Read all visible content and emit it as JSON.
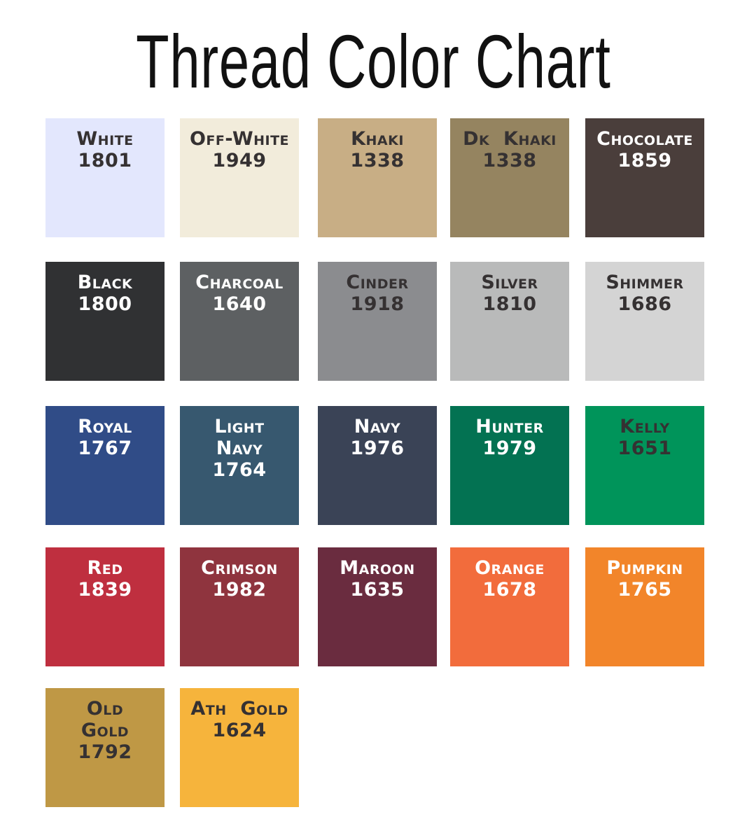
{
  "title": "Thread Color Chart",
  "swatches": [
    {
      "name": "White",
      "code": "1801",
      "color": "#e3e7fd",
      "text": "dark"
    },
    {
      "name": "Off-White",
      "code": "1949",
      "color": "#f2ecdb",
      "text": "dark"
    },
    {
      "name": "Khaki",
      "code": "1338",
      "color": "#c8ae85",
      "text": "dark"
    },
    {
      "name": "Dk  Khaki",
      "code": "1338",
      "color": "#958460",
      "text": "dark"
    },
    {
      "name": "Chocolate",
      "code": "1859",
      "color": "#4a3e3b",
      "text": "light"
    },
    {
      "name": "Black",
      "code": "1800",
      "color": "#303133",
      "text": "light"
    },
    {
      "name": "Charcoal",
      "code": "1640",
      "color": "#5d6062",
      "text": "light"
    },
    {
      "name": "Cinder",
      "code": "1918",
      "color": "#8b8c8f",
      "text": "dark"
    },
    {
      "name": "Silver",
      "code": "1810",
      "color": "#b9baba",
      "text": "dark"
    },
    {
      "name": "Shimmer",
      "code": "1686",
      "color": "#d4d4d4",
      "text": "dark"
    },
    {
      "name": "Royal",
      "code": "1767",
      "color": "#304c87",
      "text": "light"
    },
    {
      "name": "Light Navy",
      "code": "1764",
      "color": "#37586f",
      "text": "light"
    },
    {
      "name": "Navy",
      "code": "1976",
      "color": "#3a4356",
      "text": "light"
    },
    {
      "name": "Hunter",
      "code": "1979",
      "color": "#037252",
      "text": "light"
    },
    {
      "name": "Kelly",
      "code": "1651",
      "color": "#00945a",
      "text": "dark"
    },
    {
      "name": "Red",
      "code": "1839",
      "color": "#bf2f3f",
      "text": "light"
    },
    {
      "name": "Crimson",
      "code": "1982",
      "color": "#8f343e",
      "text": "light"
    },
    {
      "name": "Maroon",
      "code": "1635",
      "color": "#6a2c3f",
      "text": "light"
    },
    {
      "name": "Orange",
      "code": "1678",
      "color": "#f26c3c",
      "text": "light"
    },
    {
      "name": "Pumpkin",
      "code": "1765",
      "color": "#f2852a",
      "text": "light"
    },
    {
      "name": "Old Gold",
      "code": "1792",
      "color": "#bf9845",
      "text": "dark"
    },
    {
      "name": "Ath  Gold",
      "code": "1624",
      "color": "#f6b43c",
      "text": "dark"
    }
  ]
}
